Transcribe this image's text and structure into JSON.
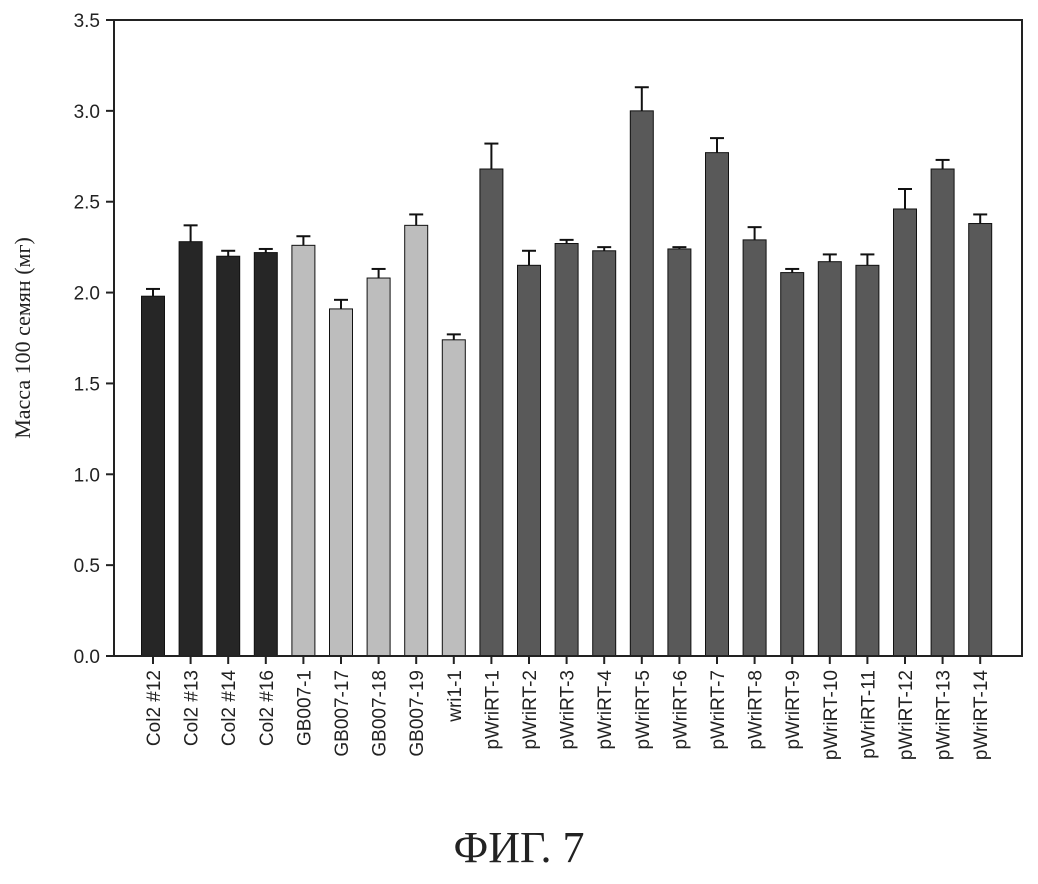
{
  "chart_data": {
    "type": "bar",
    "ylabel": "Масса 100 семян (мг)",
    "ylim": [
      0,
      3.5
    ],
    "yticks": [
      "0.0",
      "0.5",
      "1.0",
      "1.5",
      "2.0",
      "2.5",
      "3.0",
      "3.5"
    ],
    "grid": false,
    "legend": "none",
    "categories": [
      "Col2 #12",
      "Col2 #13",
      "Col2 #14",
      "Col2 #16",
      "GB007-1",
      "GB007-17",
      "GB007-18",
      "GB007-19",
      "wri1-1",
      "pWriRT-1",
      "pWriRT-2",
      "pWriRT-3",
      "pWriRT-4",
      "pWriRT-5",
      "pWriRT-6",
      "pWriRT-7",
      "pWriRT-8",
      "pWriRT-9",
      "pWriRT-10",
      "pWriRT-11",
      "pWriRT-12",
      "pWriRT-13",
      "pWriRT-14"
    ],
    "values": [
      1.98,
      2.28,
      2.2,
      2.22,
      2.26,
      1.91,
      2.08,
      2.37,
      1.74,
      2.68,
      2.15,
      2.27,
      2.23,
      3.0,
      2.24,
      2.77,
      2.29,
      2.11,
      2.17,
      2.15,
      2.46,
      2.68,
      2.38
    ],
    "errors": [
      0.04,
      0.09,
      0.03,
      0.02,
      0.05,
      0.05,
      0.05,
      0.06,
      0.03,
      0.14,
      0.08,
      0.02,
      0.02,
      0.13,
      0.01,
      0.08,
      0.07,
      0.02,
      0.04,
      0.06,
      0.11,
      0.05,
      0.05
    ],
    "groups": [
      "control",
      "control",
      "control",
      "control",
      "gb",
      "gb",
      "gb",
      "gb",
      "gb",
      "transgenic",
      "transgenic",
      "transgenic",
      "transgenic",
      "transgenic",
      "transgenic",
      "transgenic",
      "transgenic",
      "transgenic",
      "transgenic",
      "transgenic",
      "transgenic",
      "transgenic",
      "transgenic"
    ],
    "colors": {
      "control": "#262626",
      "gb": "#bdbdbd",
      "transgenic": "#595959"
    }
  },
  "caption": "ФИГ. 7"
}
